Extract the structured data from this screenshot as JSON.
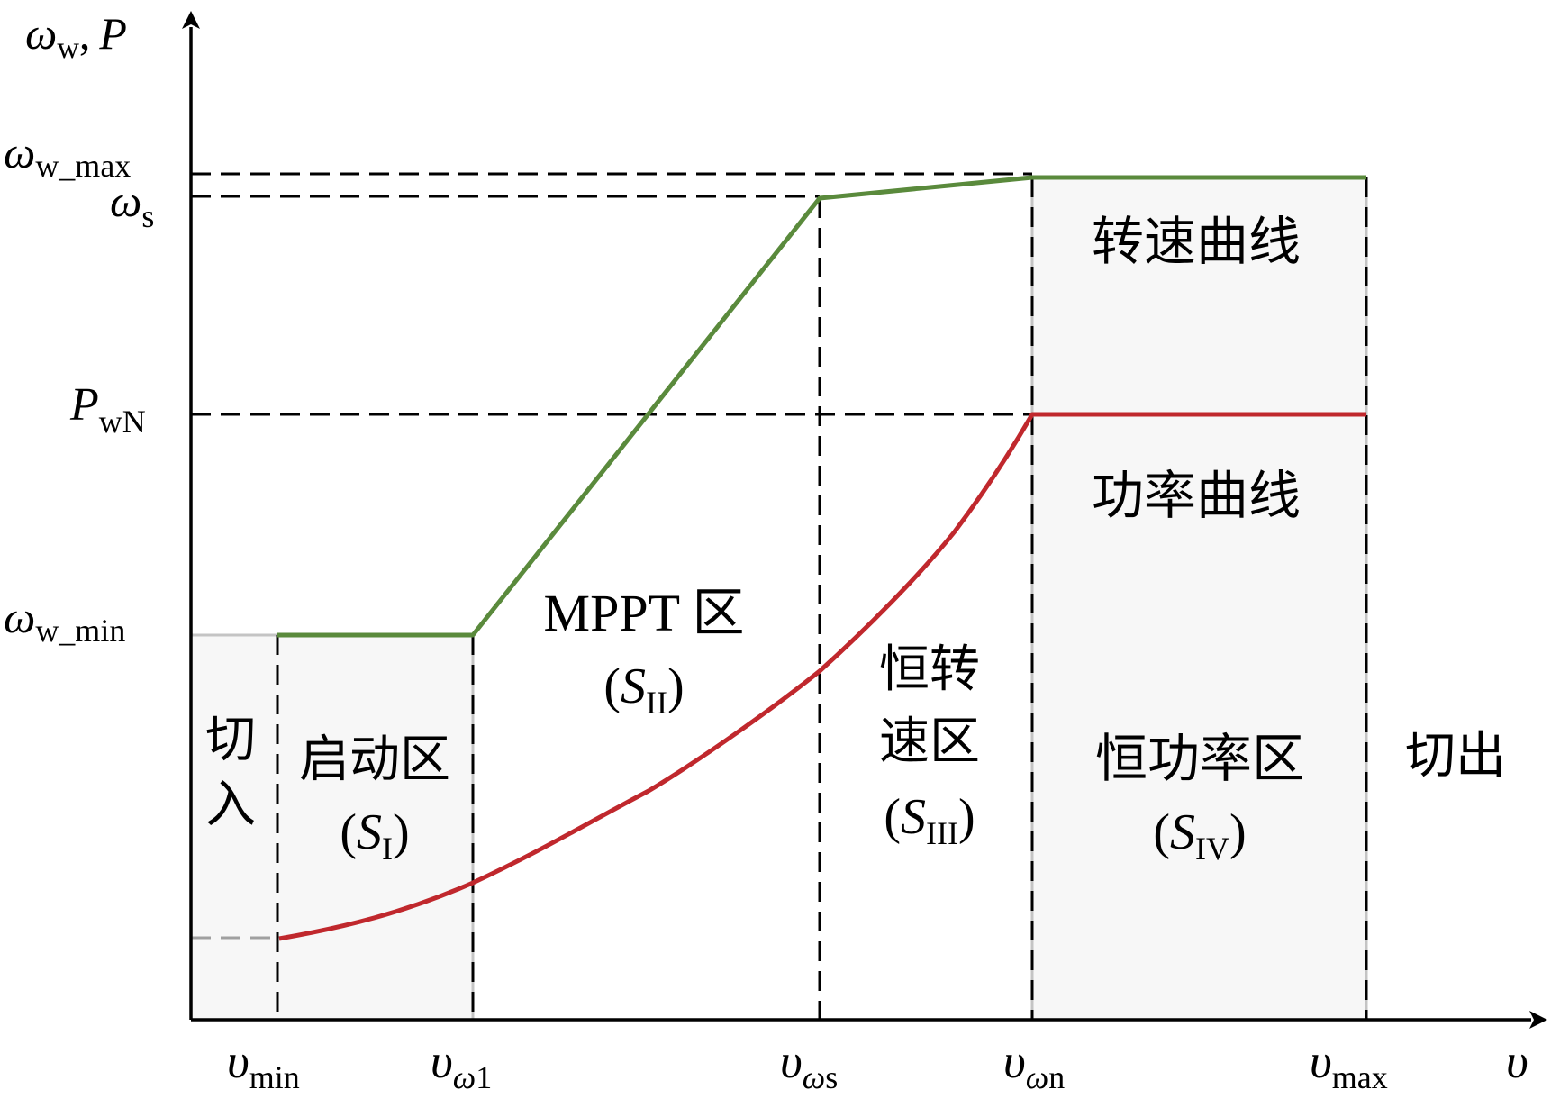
{
  "colors": {
    "speed_curve": "#5a8a3c",
    "power_curve": "#c0282d",
    "shaded_region": "#f7f7f7",
    "axis": "#000000"
  },
  "y_axis": {
    "omega": "ω",
    "omega_sub": "w",
    "comma": ",",
    "p": "P"
  },
  "x_axis": {
    "v": "υ"
  },
  "y_ticks": {
    "omega_w_max": {
      "sym": "ω",
      "sub": "w_max"
    },
    "omega_s": {
      "sym": "ω",
      "sub": "s"
    },
    "p_wn": {
      "sym": "P",
      "sub": "wN"
    },
    "omega_w_min": {
      "sym": "ω",
      "sub": "w_min"
    }
  },
  "x_ticks": {
    "v_min": {
      "sym": "υ",
      "sub": "min"
    },
    "v_omega1": {
      "sym": "υ",
      "sub_omega": "ω",
      "sub_num": "1"
    },
    "v_omegas": {
      "sym": "υ",
      "sub_omega": "ω",
      "sub_num": "s"
    },
    "v_omegan": {
      "sym": "υ",
      "sub_omega": "ω",
      "sub_num": "n"
    },
    "v_max": {
      "sym": "υ",
      "sub": "max"
    }
  },
  "regions": {
    "cut_in": {
      "line1": "切",
      "line2": "入"
    },
    "startup": {
      "name": "启动区",
      "open": "(",
      "s": "S",
      "sub": "I",
      "close": ")"
    },
    "mppt": {
      "name": "MPPT 区",
      "open": "(",
      "s": "S",
      "sub": "II",
      "close": ")"
    },
    "const_speed": {
      "line1": "恒转",
      "line2": "速区",
      "open": "(",
      "s": "S",
      "sub": "III",
      "close": ")"
    },
    "const_power": {
      "name": "恒功率区",
      "open": "(",
      "s": "S",
      "sub": "IV",
      "close": ")"
    },
    "cut_out": {
      "name": "切出"
    }
  },
  "curve_labels": {
    "speed": "转速曲线",
    "power": "功率曲线"
  }
}
